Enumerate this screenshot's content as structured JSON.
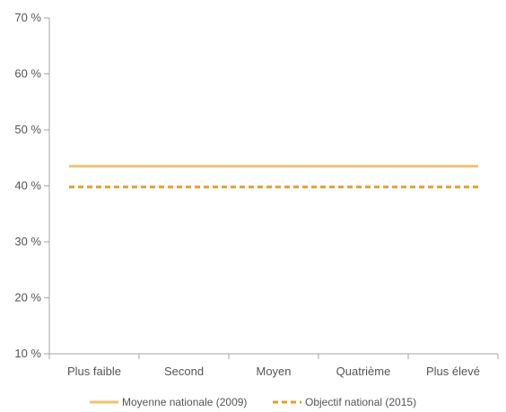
{
  "chart_data": {
    "type": "line",
    "categories": [
      "Plus faible",
      "Second",
      "Moyen",
      "Quatrième",
      "Plus élevé"
    ],
    "ylim": [
      10,
      70
    ],
    "yticks": [
      10,
      20,
      30,
      40,
      50,
      60,
      70
    ],
    "ytick_labels": [
      "10 %",
      "20 %",
      "30 %",
      "40 %",
      "50 %",
      "60 %",
      "70 %"
    ],
    "grid": false,
    "legend_position": "bottom",
    "series": [
      {
        "name": "Moyenne nationale (2009)",
        "values": [
          43.5,
          43.5,
          43.5,
          43.5,
          43.5
        ],
        "color": "#F5C26B",
        "style": "solid"
      },
      {
        "name": "Objectif national (2015)",
        "values": [
          39.8,
          39.8,
          39.8,
          39.8,
          39.8
        ],
        "color": "#E0A030",
        "style": "dashed"
      }
    ]
  }
}
